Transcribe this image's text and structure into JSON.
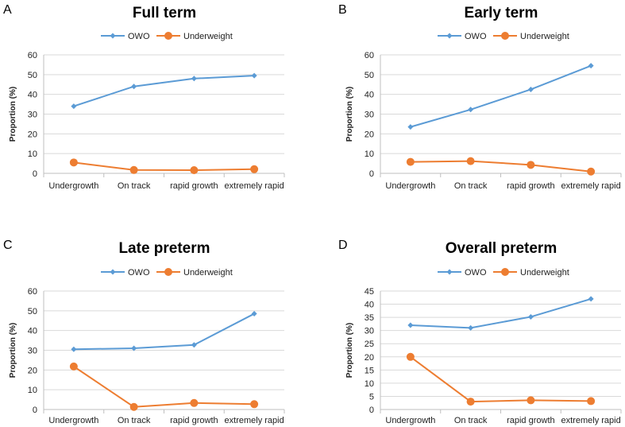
{
  "chart_data": [
    {
      "panel": "A",
      "type": "line",
      "title": "Full term",
      "xlabel": "",
      "ylabel": "Proportion (%)",
      "categories": [
        "Undergrowth",
        "On track",
        "rapid growth",
        "extremely rapid"
      ],
      "ylim": [
        0,
        60
      ],
      "yticks": [
        0,
        10,
        20,
        30,
        40,
        50,
        60
      ],
      "legend": "top",
      "grid": true,
      "series": [
        {
          "name": "OWO",
          "color": "#5b9bd5",
          "marker": "diamond",
          "values": [
            34,
            44,
            48,
            49.5
          ]
        },
        {
          "name": "Underweight",
          "color": "#ed7d31",
          "marker": "circle",
          "values": [
            5.5,
            1.7,
            1.6,
            2.1
          ]
        }
      ]
    },
    {
      "panel": "B",
      "type": "line",
      "title": "Early term",
      "xlabel": "",
      "ylabel": "Proportion (%)",
      "categories": [
        "Undergrowth",
        "On track",
        "rapid growth",
        "extremely rapid"
      ],
      "ylim": [
        0,
        60
      ],
      "yticks": [
        0,
        10,
        20,
        30,
        40,
        50,
        60
      ],
      "legend": "top",
      "grid": true,
      "series": [
        {
          "name": "OWO",
          "color": "#5b9bd5",
          "marker": "diamond",
          "values": [
            23.5,
            32.3,
            42.5,
            54.5
          ]
        },
        {
          "name": "Underweight",
          "color": "#ed7d31",
          "marker": "circle",
          "values": [
            5.8,
            6.2,
            4.3,
            0.9
          ]
        }
      ]
    },
    {
      "panel": "C",
      "type": "line",
      "title": "Late preterm",
      "xlabel": "",
      "ylabel": "Proportion (%)",
      "categories": [
        "Undergrowth",
        "On track",
        "rapid growth",
        "extremely rapid"
      ],
      "ylim": [
        0,
        60
      ],
      "yticks": [
        0,
        10,
        20,
        30,
        40,
        50,
        60
      ],
      "legend": "top",
      "grid": true,
      "series": [
        {
          "name": "OWO",
          "color": "#5b9bd5",
          "marker": "diamond",
          "values": [
            30.5,
            31,
            32.7,
            48.5
          ]
        },
        {
          "name": "Underweight",
          "color": "#ed7d31",
          "marker": "circle",
          "values": [
            21.8,
            1.3,
            3.3,
            2.7
          ]
        }
      ]
    },
    {
      "panel": "D",
      "type": "line",
      "title": "Overall preterm",
      "xlabel": "",
      "ylabel": "Proportion (%)",
      "categories": [
        "Undergrowth",
        "On track",
        "rapid growth",
        "extremely rapid"
      ],
      "ylim": [
        0,
        45
      ],
      "yticks": [
        0,
        5,
        10,
        15,
        20,
        25,
        30,
        35,
        40,
        45
      ],
      "legend": "top",
      "grid": true,
      "series": [
        {
          "name": "OWO",
          "color": "#5b9bd5",
          "marker": "diamond",
          "values": [
            32,
            31,
            35.2,
            42
          ]
        },
        {
          "name": "Underweight",
          "color": "#ed7d31",
          "marker": "circle",
          "values": [
            20,
            3,
            3.5,
            3.2
          ]
        }
      ]
    }
  ]
}
